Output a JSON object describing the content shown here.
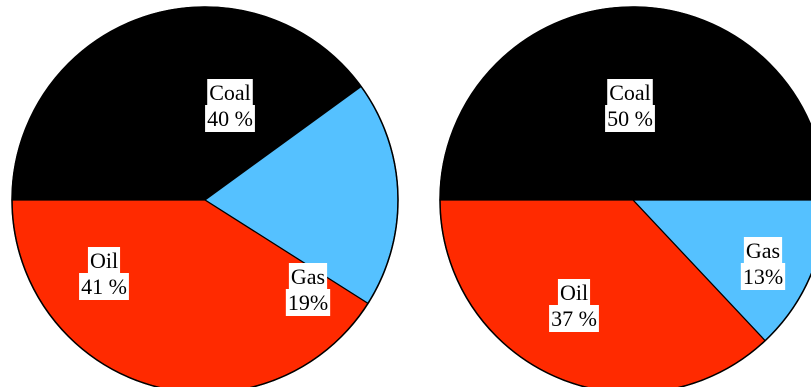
{
  "chart_data": [
    {
      "type": "pie",
      "title": "",
      "slices": [
        {
          "name": "Coal",
          "value": 40,
          "label_value": "40 %",
          "color": "#000000"
        },
        {
          "name": "Gas",
          "value": 19,
          "label_value": "19%",
          "color": "#55c1ff"
        },
        {
          "name": "Oil",
          "value": 41,
          "label_value": "41 %",
          "color": "#ff2a00"
        }
      ]
    },
    {
      "type": "pie",
      "title": "",
      "slices": [
        {
          "name": "Coal",
          "value": 50,
          "label_value": "50 %",
          "color": "#000000"
        },
        {
          "name": "Gas",
          "value": 13,
          "label_value": "13%",
          "color": "#55c1ff"
        },
        {
          "name": "Oil",
          "value": 37,
          "label_value": "37 %",
          "color": "#ff2a00"
        }
      ]
    }
  ]
}
